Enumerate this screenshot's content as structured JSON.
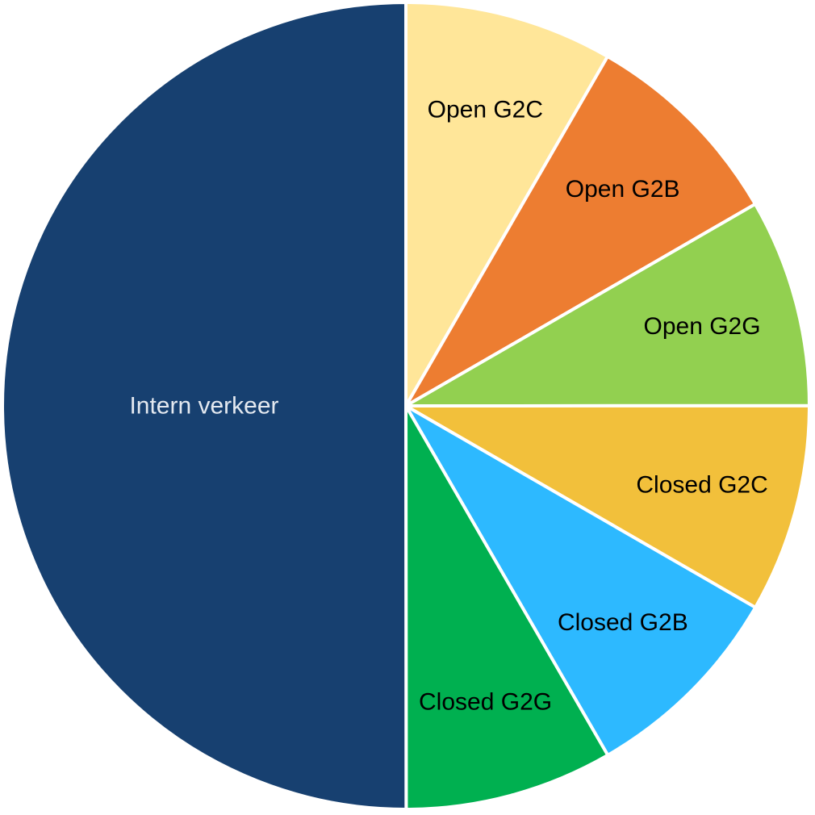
{
  "chart_data": {
    "type": "pie",
    "title": "",
    "start_angle_deg": 0,
    "direction": "clockwise",
    "slices": [
      {
        "label": "Open G2C",
        "value": 8.33,
        "color": "#FFE699",
        "label_color": "#000000"
      },
      {
        "label": "Open G2B",
        "value": 8.33,
        "color": "#ED7D31",
        "label_color": "#000000"
      },
      {
        "label": "Open G2G",
        "value": 8.33,
        "color": "#92D050",
        "label_color": "#000000"
      },
      {
        "label": "Closed G2C",
        "value": 8.33,
        "color": "#F2C03B",
        "label_color": "#000000"
      },
      {
        "label": "Closed G2B",
        "value": 8.33,
        "color": "#2DB9FF",
        "label_color": "#000000"
      },
      {
        "label": "Closed G2G",
        "value": 8.33,
        "color": "#00B050",
        "label_color": "#000000"
      },
      {
        "label": "Intern verkeer",
        "value": 50,
        "color": "#174070",
        "label_color": "#E4E9F0"
      }
    ]
  }
}
